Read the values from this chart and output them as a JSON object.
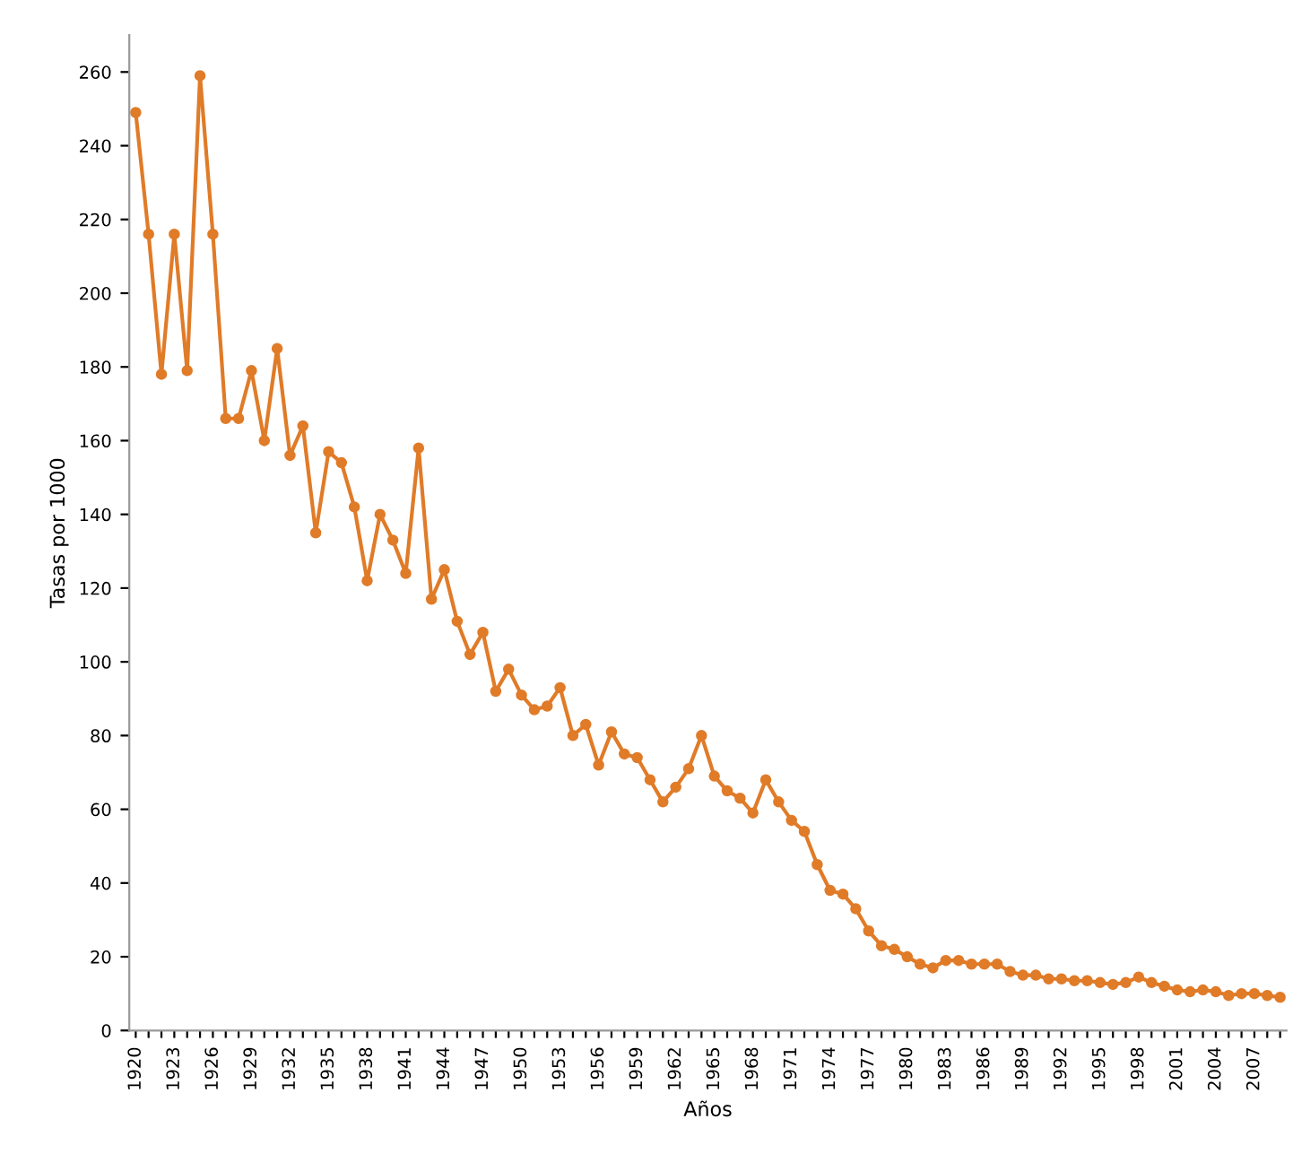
{
  "chart_data": {
    "type": "line",
    "xlabel": "Años",
    "ylabel": "Tasas por 1000",
    "categories": [
      "1920",
      null,
      null,
      "1923",
      null,
      null,
      "1926",
      null,
      null,
      "1929",
      null,
      null,
      "1932",
      null,
      null,
      "1935",
      null,
      null,
      "1938",
      null,
      null,
      "1941",
      null,
      null,
      "1944",
      null,
      null,
      "1947",
      null,
      null,
      "1950",
      null,
      null,
      "1953",
      null,
      null,
      "1956",
      null,
      null,
      "1959",
      null,
      null,
      "1962",
      null,
      null,
      "1965",
      null,
      null,
      "1968",
      null,
      null,
      "1971",
      null,
      null,
      "1974",
      null,
      null,
      "1977",
      null,
      null,
      "1980",
      null,
      null,
      "1983",
      null,
      null,
      "1986",
      null,
      null,
      "1989",
      null,
      null,
      "1992",
      null,
      null,
      "1995",
      null,
      null,
      "1998",
      null,
      null,
      "2001",
      null,
      null,
      "2004",
      null,
      null,
      "2007",
      null,
      null
    ],
    "series": [
      {
        "color": "#e07b28",
        "values": [
          249,
          216,
          178,
          216,
          179,
          259,
          216,
          166,
          166,
          179,
          160,
          185,
          156,
          164,
          135,
          157,
          154,
          142,
          122,
          140,
          133,
          124,
          158,
          117,
          125,
          111,
          102,
          108,
          92,
          98,
          91,
          87,
          88,
          93,
          80,
          83,
          72,
          81,
          75,
          74,
          68,
          62,
          66,
          71,
          80,
          69,
          65,
          63,
          59,
          68,
          62,
          57,
          54,
          45,
          38,
          37,
          33,
          27,
          23,
          22,
          20,
          18,
          17,
          19,
          19,
          18,
          18,
          18,
          16,
          15,
          15,
          14,
          14,
          13.5,
          13.5,
          13,
          12.5,
          13,
          14.5,
          13,
          12,
          11,
          10.5,
          11,
          10.5,
          9.5,
          10,
          10,
          9.5,
          9
        ]
      }
    ],
    "ylim": [
      0,
      270
    ],
    "yticks": [
      0,
      20,
      40,
      60,
      80,
      100,
      120,
      140,
      160,
      180,
      200,
      220,
      240,
      260
    ],
    "grid": false,
    "marker": "circle",
    "line_style": "solid"
  }
}
